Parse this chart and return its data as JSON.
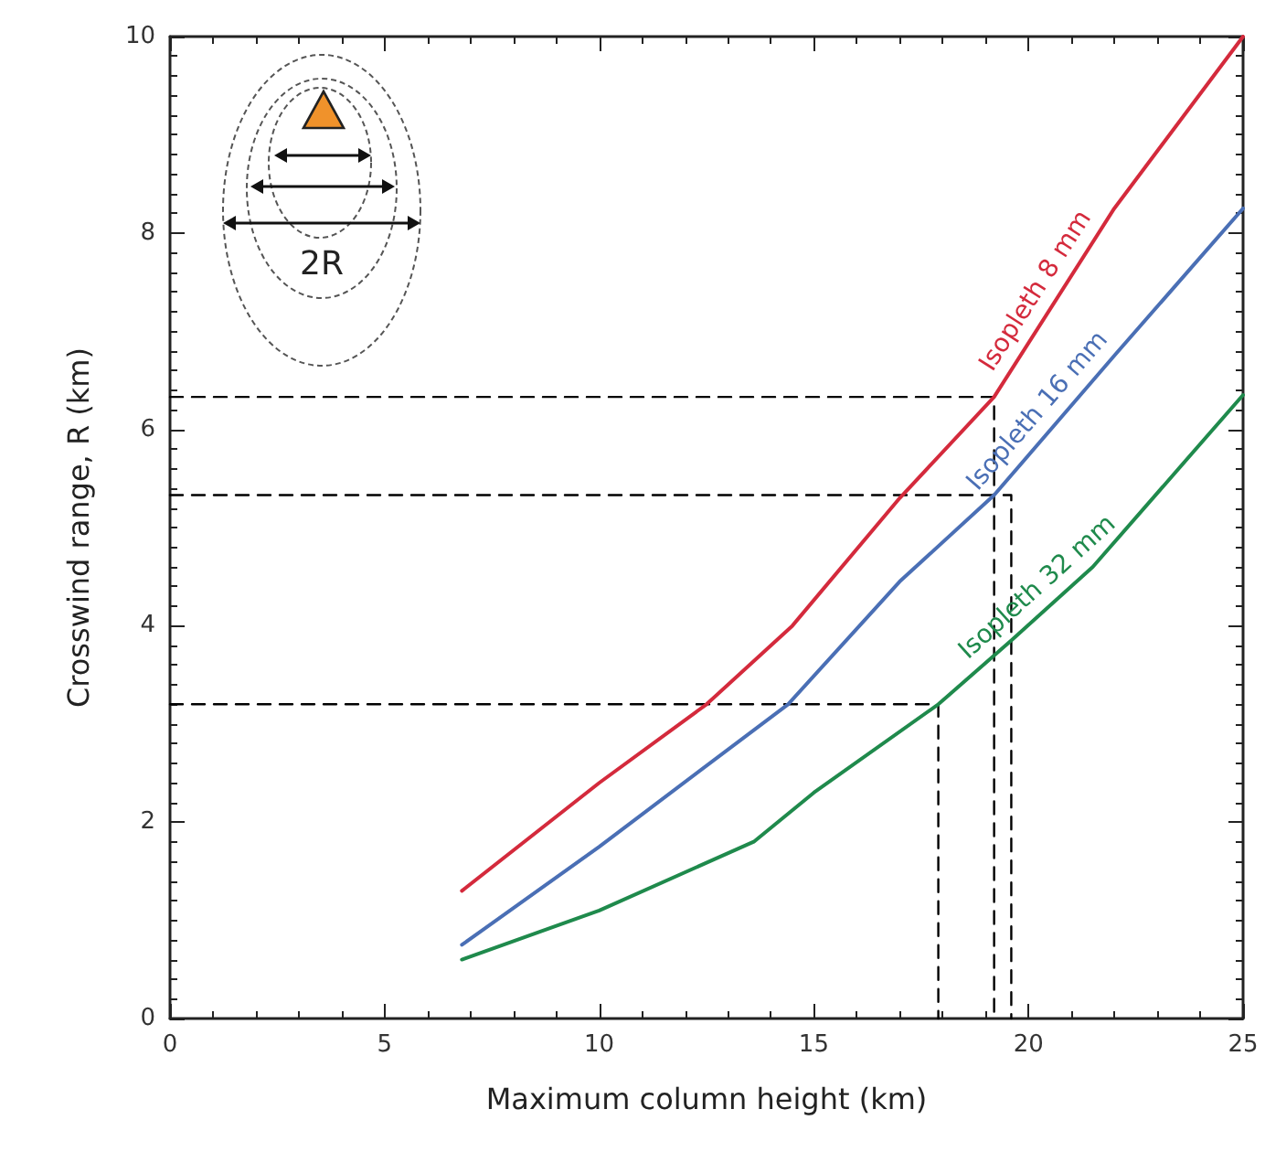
{
  "chart_data": {
    "type": "line",
    "xlabel": "Maximum column height (km)",
    "ylabel": "Crosswind range, R (km)",
    "xlim": [
      0,
      25
    ],
    "xticks": [
      0,
      5,
      10,
      15,
      20,
      25
    ],
    "ylim": [
      0,
      10
    ],
    "yticks": [
      0,
      2,
      4,
      6,
      8,
      10
    ],
    "grid": false,
    "legend": false,
    "marker": "none",
    "line_style": "solid",
    "annotations": [
      "2R"
    ],
    "series": [
      {
        "name": "Isopleth 8 mm",
        "color": "#d42a3c",
        "x": [
          6.8,
          10,
          12.5,
          14.5,
          17,
          19.2,
          22,
          25
        ],
        "values": [
          1.3,
          2.4,
          3.2,
          4.0,
          5.3,
          6.33,
          8.25,
          10
        ]
      },
      {
        "name": "Isopleth 16 mm",
        "color": "#4a6fb5",
        "x": [
          6.8,
          10,
          14.4,
          17,
          19.2,
          22,
          25
        ],
        "values": [
          0.75,
          1.75,
          3.2,
          4.45,
          5.33,
          6.75,
          8.25
        ]
      },
      {
        "name": "Isopleth 32 mm",
        "color": "#1f8a4c",
        "x": [
          6.8,
          10,
          13.6,
          15,
          17.9,
          19.6,
          21.5,
          25
        ],
        "values": [
          0.6,
          1.1,
          1.8,
          2.3,
          3.2,
          3.85,
          4.6,
          6.35
        ]
      },
      {
        "color": "#000000",
        "line_style": "dashed",
        "x": [
          0,
          19.2,
          19.2
        ],
        "values": [
          6.33,
          6.33,
          0
        ]
      },
      {
        "color": "#000000",
        "line_style": "dashed",
        "x": [
          0,
          19.6,
          19.6
        ],
        "values": [
          5.33,
          5.33,
          0
        ]
      },
      {
        "color": "#000000",
        "line_style": "dashed",
        "x": [
          0,
          17.9,
          17.9
        ],
        "values": [
          3.2,
          3.2,
          0
        ]
      }
    ]
  }
}
